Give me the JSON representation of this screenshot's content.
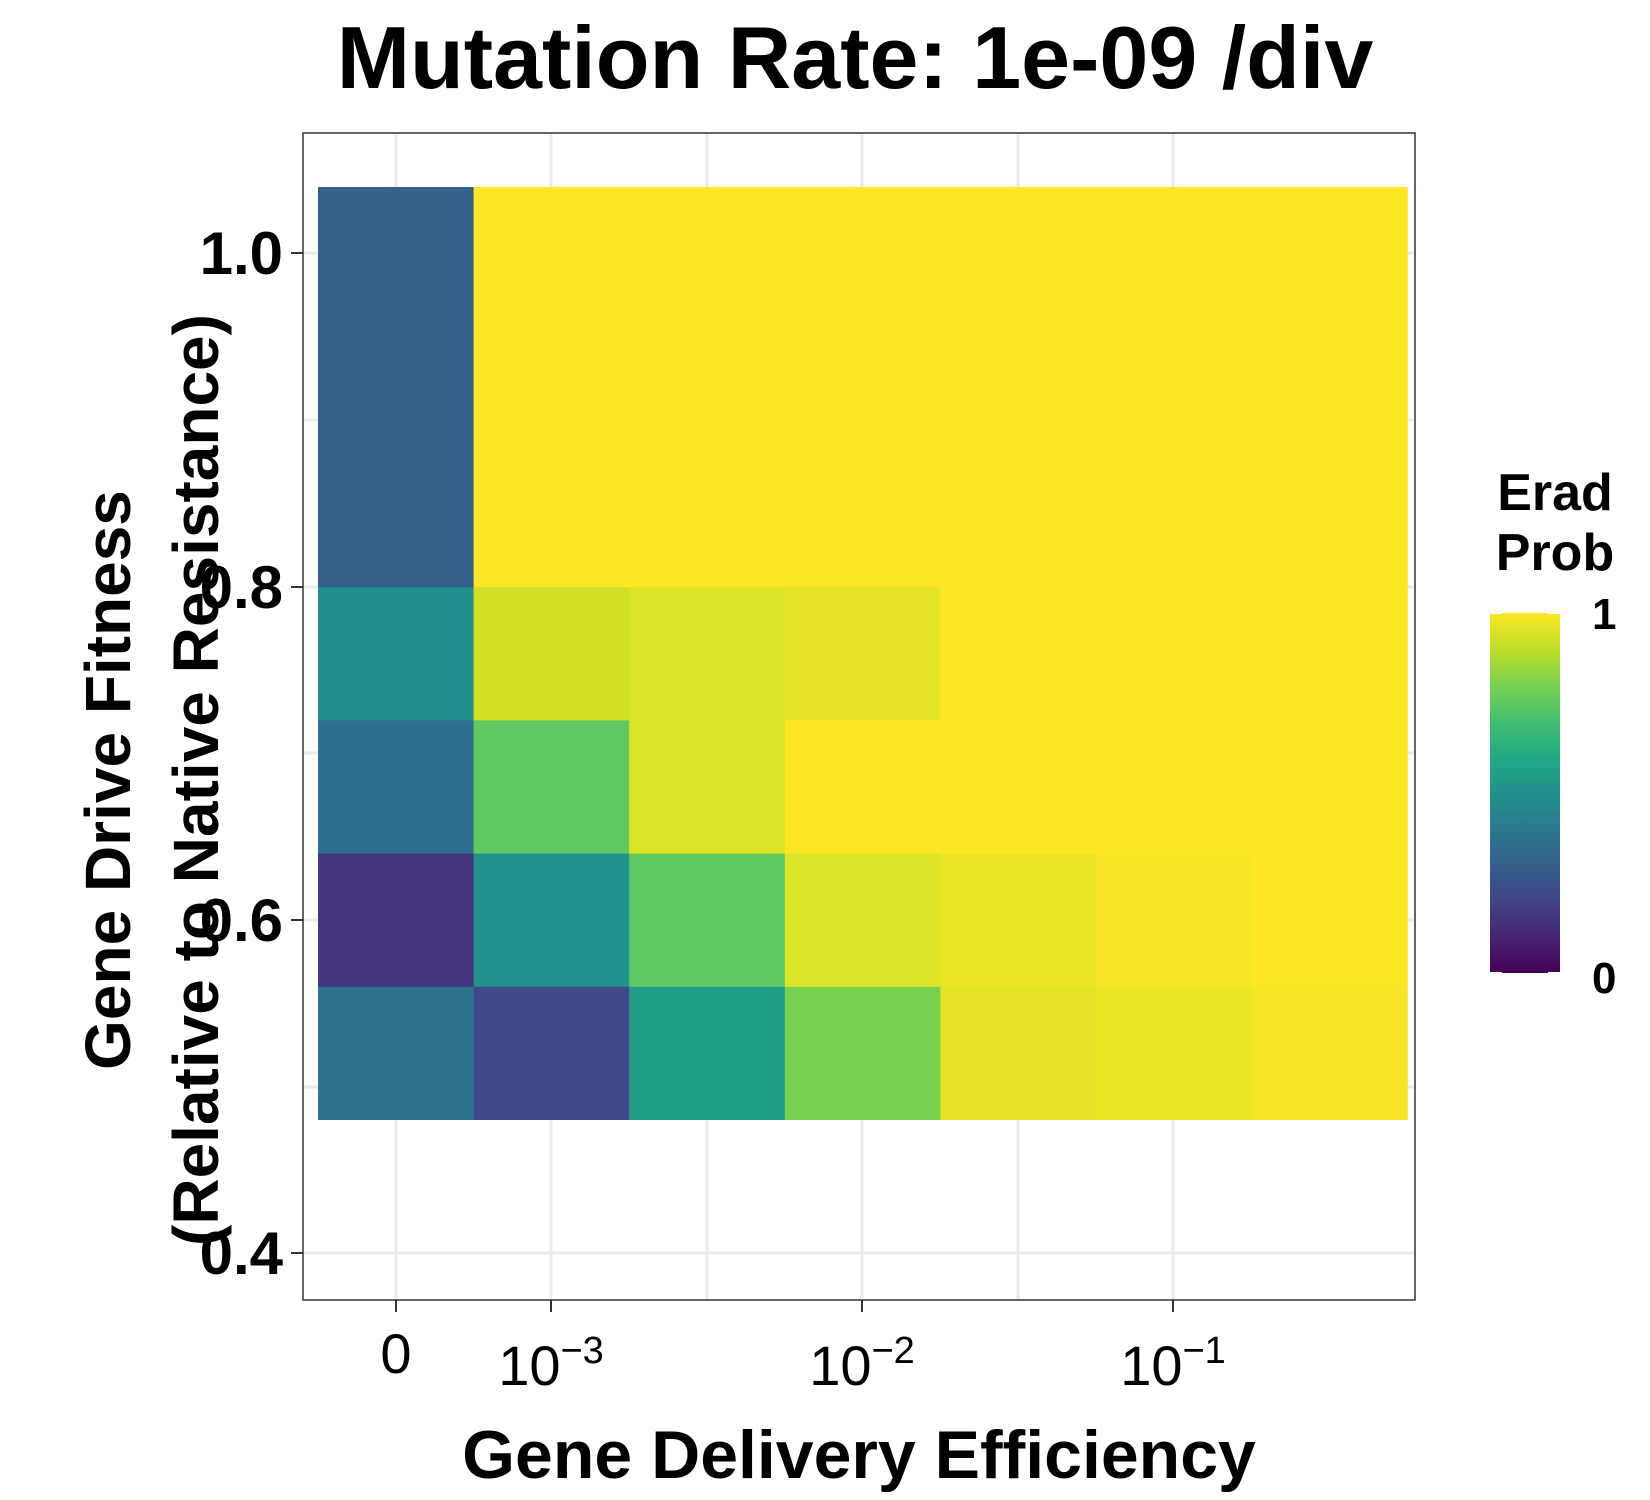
{
  "chart_data": {
    "type": "heatmap",
    "title": "Mutation Rate: 1e-09 /div",
    "xlabel": "Gene Delivery Efficiency",
    "ylabel": [
      "Gene Drive Fitness",
      "(Relative to Native Resistance)"
    ],
    "x_tick_labels": [
      {
        "base": "0",
        "exp": ""
      },
      {
        "base": "10",
        "exp": "−3"
      },
      {
        "base": "10",
        "exp": "−2"
      },
      {
        "base": "10",
        "exp": "−1"
      }
    ],
    "y_tick_labels": [
      "0.4",
      "0.6",
      "0.8",
      "1.0"
    ],
    "x_categories": [
      "0",
      "0.0005",
      "0.001",
      "0.005",
      "0.01",
      "0.05",
      "0.1"
    ],
    "y_categories": [
      0.45,
      0.5,
      0.6,
      0.7,
      0.8,
      0.9,
      1.0
    ],
    "values": [
      [
        0.38,
        0.22,
        0.55,
        0.8,
        0.96,
        0.97,
        0.99
      ],
      [
        0.15,
        0.5,
        0.75,
        0.95,
        0.97,
        0.99,
        1.0
      ],
      [
        0.36,
        0.75,
        0.95,
        1.0,
        1.0,
        1.0,
        1.0
      ],
      [
        0.48,
        0.93,
        0.95,
        0.96,
        1.0,
        1.0,
        1.0
      ],
      [
        0.3,
        1.0,
        1.0,
        1.0,
        1.0,
        1.0,
        1.0
      ],
      [
        0.3,
        1.0,
        1.0,
        1.0,
        1.0,
        1.0,
        1.0
      ],
      [
        0.3,
        1.0,
        1.0,
        1.0,
        1.0,
        1.0,
        1.0
      ]
    ],
    "colorscale": "viridis",
    "legend": {
      "title": [
        "Erad",
        "Prob"
      ],
      "ticks": [
        "1",
        "0"
      ],
      "placement": "right"
    },
    "grid": true
  }
}
